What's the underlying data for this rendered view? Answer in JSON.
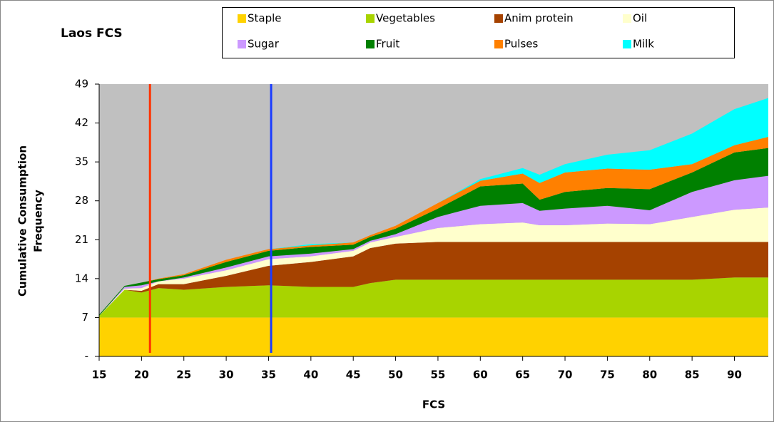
{
  "chart_data": {
    "type": "stacked-area",
    "title": "Laos FCS",
    "xlabel": "FCS",
    "ylabel": [
      "Cumulative Consumption",
      "Frequency"
    ],
    "x": [
      15,
      18,
      20,
      22,
      25,
      30,
      35,
      40,
      45,
      47,
      50,
      55,
      60,
      65,
      67,
      70,
      75,
      80,
      85,
      90,
      94
    ],
    "series": [
      {
        "name": "Staple",
        "color": "#ffd200",
        "values": [
          7,
          7,
          7,
          7,
          7,
          7,
          7,
          7,
          7,
          7,
          7,
          7,
          7,
          7,
          7,
          7,
          7,
          7,
          7,
          7,
          7
        ]
      },
      {
        "name": "Vegetables",
        "color": "#a8d400",
        "values": [
          0.3,
          5,
          4.5,
          5.3,
          5,
          5.5,
          5.8,
          5.5,
          5.5,
          6.2,
          6.8,
          6.8,
          6.8,
          6.8,
          6.8,
          6.8,
          6.8,
          6.8,
          6.8,
          7.2,
          7.2
        ]
      },
      {
        "name": "Anim protein",
        "color": "#a54200",
        "values": [
          0,
          0,
          0.3,
          0.7,
          1,
          2,
          3.5,
          4.5,
          5.5,
          6.3,
          6.5,
          6.8,
          6.8,
          6.8,
          6.8,
          6.8,
          6.8,
          6.8,
          6.8,
          6.4,
          6.4
        ]
      },
      {
        "name": "Oil",
        "color": "#ffffcc",
        "values": [
          0,
          0.2,
          0.5,
          0.5,
          1,
          1,
          1.2,
          1,
          1,
          1,
          1.2,
          2.5,
          3.2,
          3.5,
          3,
          3,
          3.3,
          3.2,
          4.5,
          5.8,
          6.2
        ]
      },
      {
        "name": "Sugar",
        "color": "#cc99ff",
        "values": [
          0,
          0.3,
          0.5,
          0,
          0.2,
          0.5,
          0.5,
          0.5,
          0.3,
          0.3,
          0.5,
          2,
          3.3,
          3.5,
          2.6,
          3,
          3.2,
          2.5,
          4.5,
          5.3,
          5.7
        ]
      },
      {
        "name": "Fruit",
        "color": "#008000",
        "values": [
          0.2,
          0.2,
          0.5,
          0.4,
          0.4,
          1,
          1,
          1.2,
          0.8,
          0.7,
          1,
          1.5,
          3.5,
          3.5,
          2,
          3,
          3.2,
          3.8,
          3.5,
          5,
          5
        ]
      },
      {
        "name": "Pulses",
        "color": "#ff8000",
        "values": [
          0,
          0,
          0,
          0.1,
          0.2,
          0.4,
          0.3,
          0.3,
          0.4,
          0.3,
          0.5,
          1,
          1,
          1.8,
          3,
          3.5,
          3.5,
          3.5,
          1.5,
          1.3,
          2
        ]
      },
      {
        "name": "Milk",
        "color": "#00ffff",
        "values": [
          0,
          0,
          0,
          0,
          0,
          0,
          0,
          0.2,
          0,
          0,
          0,
          0,
          0.3,
          1,
          1.5,
          1.5,
          2.5,
          3.5,
          5.5,
          6.5,
          7
        ]
      }
    ],
    "vlines": [
      {
        "x": 21,
        "color": "#ff3300"
      },
      {
        "x": 35.3,
        "color": "#1a3cff"
      }
    ],
    "xlim": [
      15,
      94
    ],
    "xticks": [
      15,
      20,
      25,
      30,
      35,
      40,
      45,
      50,
      55,
      60,
      65,
      70,
      75,
      80,
      85,
      90
    ],
    "ylim": [
      0,
      49
    ],
    "yticks": [
      {
        "value": 0,
        "label": "-"
      },
      7,
      14,
      21,
      28,
      35,
      42,
      49
    ],
    "plot_background": "#c0c0c0"
  }
}
